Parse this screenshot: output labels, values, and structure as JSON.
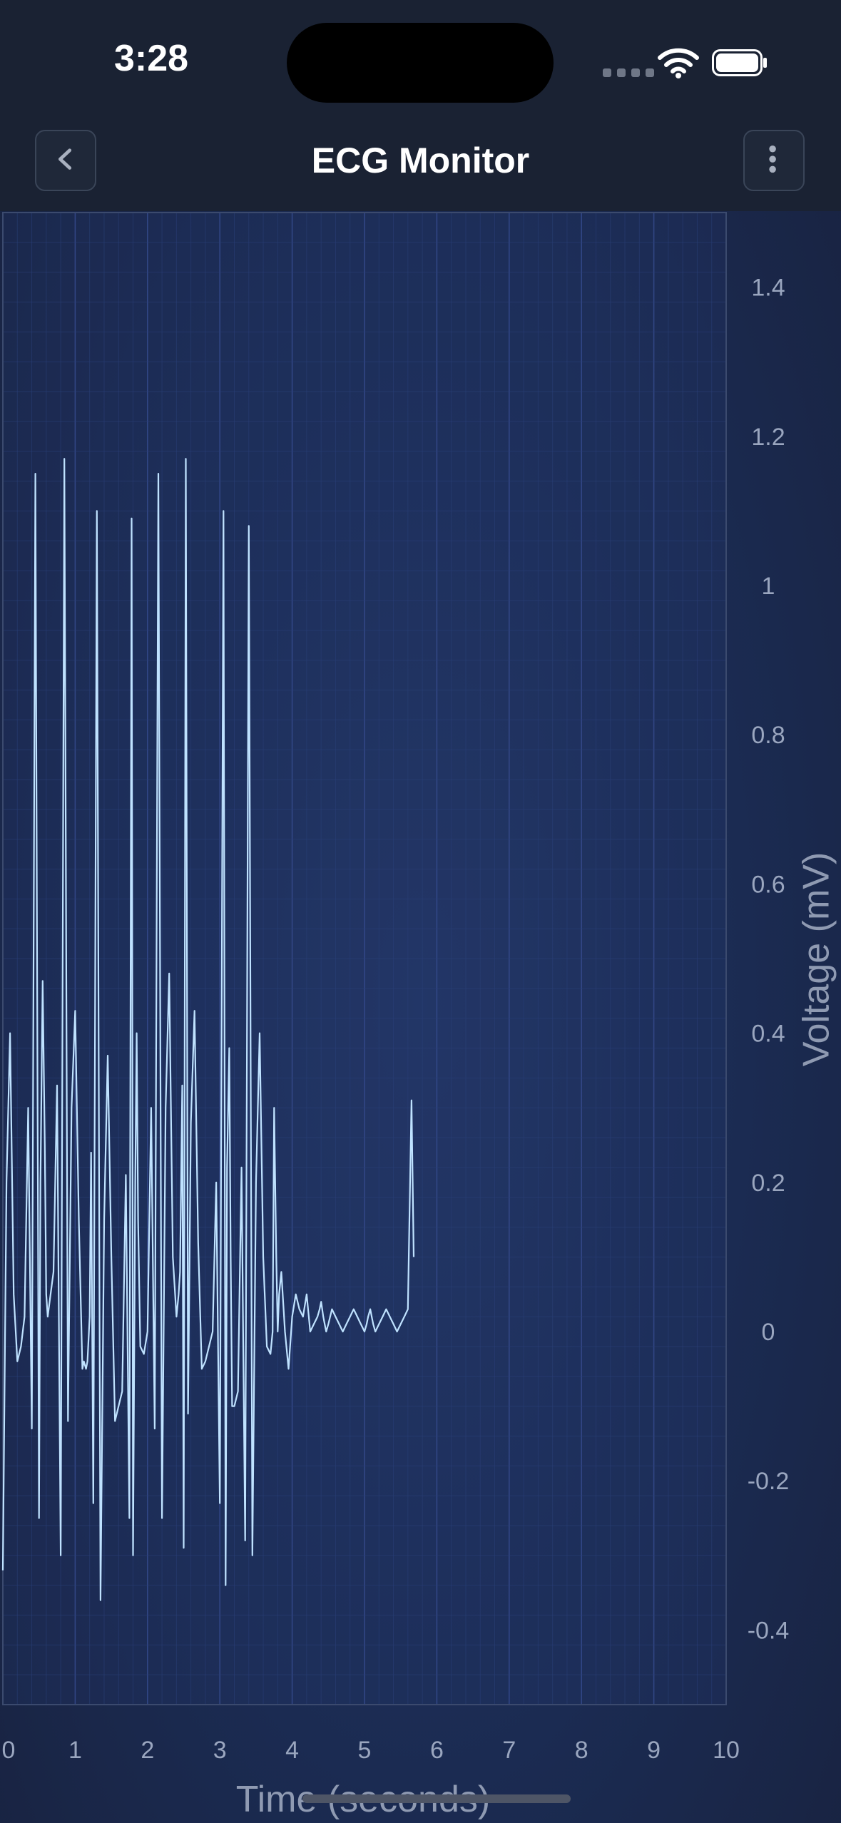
{
  "status_bar": {
    "time": "3:28"
  },
  "nav": {
    "title": "ECG Monitor",
    "back_icon": "chevron-left-icon",
    "menu_icon": "more-vertical-icon"
  },
  "colors": {
    "background": "#1b2b52",
    "header": "#1a2233",
    "trace": "#bfe2ff",
    "grid_minor": "#2a3f78",
    "grid_major": "#34498a",
    "axis_text": "#9aa6bf"
  },
  "chart_data": {
    "type": "line",
    "title": "",
    "xlabel": "Time (seconds)",
    "ylabel": "Voltage (mV)",
    "xlim": [
      0,
      10
    ],
    "ylim": [
      -0.5,
      1.5
    ],
    "y_axis_position": "right",
    "grid": true,
    "xticks": [
      0,
      1,
      2,
      3,
      4,
      5,
      6,
      7,
      8,
      9,
      10
    ],
    "yticks": [
      -0.4,
      -0.2,
      0,
      0.2,
      0.4,
      0.6,
      0.8,
      1,
      1.2,
      1.4
    ],
    "series": [
      {
        "x": [
          0.0,
          0.05,
          0.1,
          0.15,
          0.2,
          0.25,
          0.3,
          0.35,
          0.4,
          0.45,
          0.5,
          0.52,
          0.55,
          0.58,
          0.6,
          0.62,
          0.66,
          0.7,
          0.75,
          0.8,
          0.85,
          0.9,
          0.95,
          1.0,
          1.05,
          1.1,
          1.12,
          1.15,
          1.17,
          1.2,
          1.22,
          1.25,
          1.3,
          1.35,
          1.4,
          1.45,
          1.5,
          1.55,
          1.6,
          1.65,
          1.7,
          1.75,
          1.78,
          1.8,
          1.83,
          1.85,
          1.87,
          1.9,
          1.95,
          2.0,
          2.05,
          2.1,
          2.15,
          2.2,
          2.25,
          2.3,
          2.35,
          2.4,
          2.43,
          2.45,
          2.48,
          2.5,
          2.53,
          2.56,
          2.6,
          2.65,
          2.7,
          2.75,
          2.8,
          2.85,
          2.9,
          2.95,
          3.0,
          3.05,
          3.08,
          3.1,
          3.13,
          3.15,
          3.17,
          3.2,
          3.25,
          3.3,
          3.35,
          3.4,
          3.45,
          3.5,
          3.55,
          3.6,
          3.65,
          3.7,
          3.73,
          3.75,
          3.78,
          3.8,
          3.82,
          3.85,
          3.9,
          3.95,
          4.0,
          4.05,
          4.1,
          4.15,
          4.2,
          4.25,
          4.3,
          4.35,
          4.38,
          4.4,
          4.43,
          4.45,
          4.47,
          4.5,
          4.55,
          4.6,
          4.65,
          4.7,
          4.75,
          4.8,
          4.85,
          4.9,
          4.95,
          5.0,
          5.03,
          5.05,
          5.08,
          5.1,
          5.12,
          5.15,
          5.2,
          5.25,
          5.3,
          5.35,
          5.4,
          5.45,
          5.5,
          5.55,
          5.6,
          5.65,
          5.68
        ],
        "y": [
          -0.32,
          0.2,
          0.4,
          0.05,
          -0.04,
          -0.02,
          0.02,
          0.3,
          -0.13,
          1.15,
          -0.25,
          0.2,
          0.47,
          0.25,
          0.05,
          0.02,
          0.05,
          0.08,
          0.33,
          -0.3,
          1.17,
          -0.12,
          0.3,
          0.43,
          0.15,
          -0.05,
          -0.04,
          -0.05,
          -0.04,
          0.02,
          0.24,
          -0.23,
          1.1,
          -0.36,
          0.15,
          0.37,
          0.1,
          -0.12,
          -0.1,
          -0.08,
          0.21,
          -0.25,
          1.09,
          -0.3,
          0.2,
          0.4,
          0.15,
          -0.02,
          -0.03,
          0.0,
          0.3,
          -0.13,
          1.15,
          -0.25,
          0.3,
          0.48,
          0.1,
          0.02,
          0.05,
          0.08,
          0.33,
          -0.29,
          1.17,
          -0.11,
          0.28,
          0.43,
          0.12,
          -0.05,
          -0.04,
          -0.02,
          0.0,
          0.2,
          -0.23,
          1.1,
          -0.34,
          0.22,
          0.38,
          0.1,
          -0.1,
          -0.1,
          -0.08,
          0.22,
          -0.28,
          1.08,
          -0.3,
          0.2,
          0.4,
          0.1,
          -0.02,
          -0.03,
          0.0,
          0.3,
          0.1,
          0.0,
          0.05,
          0.08,
          0.0,
          -0.05,
          0.02,
          0.05,
          0.03,
          0.02,
          0.05,
          0.0,
          0.01,
          0.02,
          0.03,
          0.04,
          0.02,
          0.01,
          0.0,
          0.01,
          0.03,
          0.02,
          0.01,
          0.0,
          0.01,
          0.02,
          0.03,
          0.02,
          0.01,
          0.0,
          0.01,
          0.02,
          0.03,
          0.02,
          0.01,
          0.0,
          0.01,
          0.02,
          0.03,
          0.02,
          0.01,
          0.0,
          0.01,
          0.02,
          0.03,
          0.31,
          0.1
        ]
      }
    ]
  }
}
